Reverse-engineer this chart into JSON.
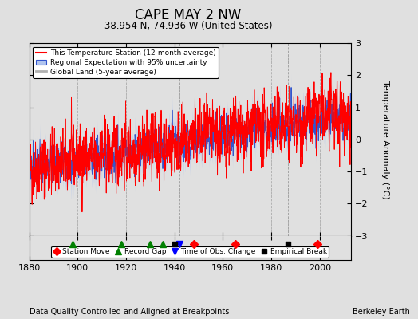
{
  "title": "CAPE MAY 2 NW",
  "subtitle": "38.954 N, 74.936 W (United States)",
  "ylabel": "Temperature Anomaly (°C)",
  "xlabel_bottom": "Data Quality Controlled and Aligned at Breakpoints",
  "xlabel_right": "Berkeley Earth",
  "ylim": [
    -3,
    3
  ],
  "xlim": [
    1880,
    2013
  ],
  "yticks": [
    -3,
    -2,
    -1,
    0,
    1,
    2,
    3
  ],
  "xticks": [
    1880,
    1900,
    1920,
    1940,
    1960,
    1980,
    2000
  ],
  "bg_color": "#e0e0e0",
  "legend_entries": [
    "This Temperature Station (12-month average)",
    "Regional Expectation with 95% uncertainty",
    "Global Land (5-year average)"
  ],
  "station_moves": [
    1948,
    1965,
    1999
  ],
  "record_gaps": [
    1898,
    1918,
    1930,
    1935
  ],
  "obs_changes": [
    1942
  ],
  "empirical_breaks": [
    1940,
    1987
  ],
  "random_seed": 42
}
